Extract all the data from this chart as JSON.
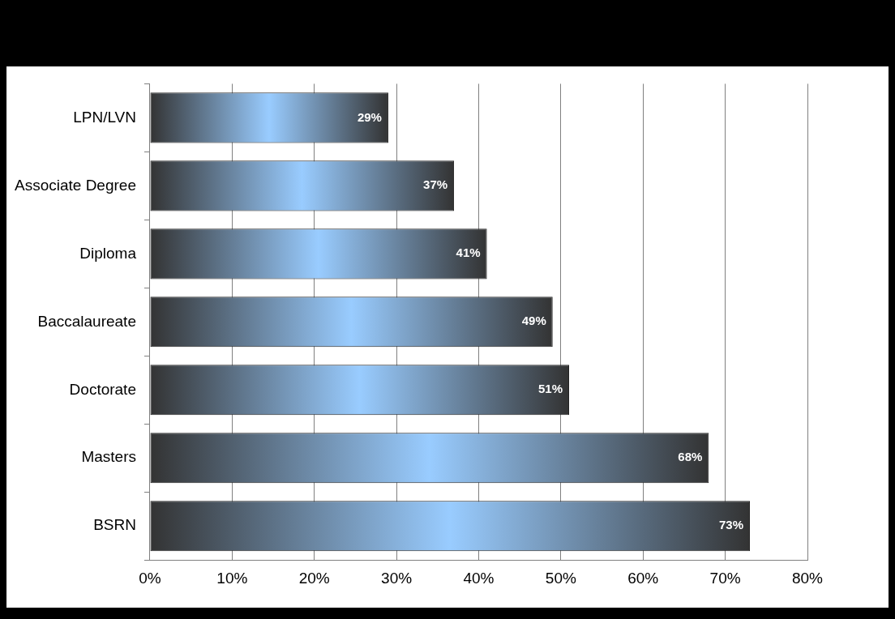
{
  "chart_data": {
    "type": "bar",
    "orientation": "horizontal",
    "categories": [
      "LPN/LVN",
      "Associate Degree",
      "Diploma",
      "Baccalaureate",
      "Doctorate",
      "Masters",
      "BSRN"
    ],
    "series": [
      {
        "color": "#99ccff",
        "values": [
          29,
          37,
          41,
          49,
          51,
          68,
          73
        ],
        "value_labels": [
          "29%",
          "37%",
          "41%",
          "49%",
          "51%",
          "68%",
          "73%"
        ]
      }
    ],
    "xlim": [
      0,
      80
    ],
    "xticks": [
      {
        "value": 0,
        "label": "0%"
      },
      {
        "value": 10,
        "label": "10%"
      },
      {
        "value": 20,
        "label": "20%"
      },
      {
        "value": 30,
        "label": "30%"
      },
      {
        "value": 40,
        "label": "40%"
      },
      {
        "value": 50,
        "label": "50%"
      },
      {
        "value": 60,
        "label": "60%"
      },
      {
        "value": 70,
        "label": "70%"
      },
      {
        "value": 80,
        "label": "80%"
      }
    ],
    "grid": "x",
    "legend": false
  }
}
